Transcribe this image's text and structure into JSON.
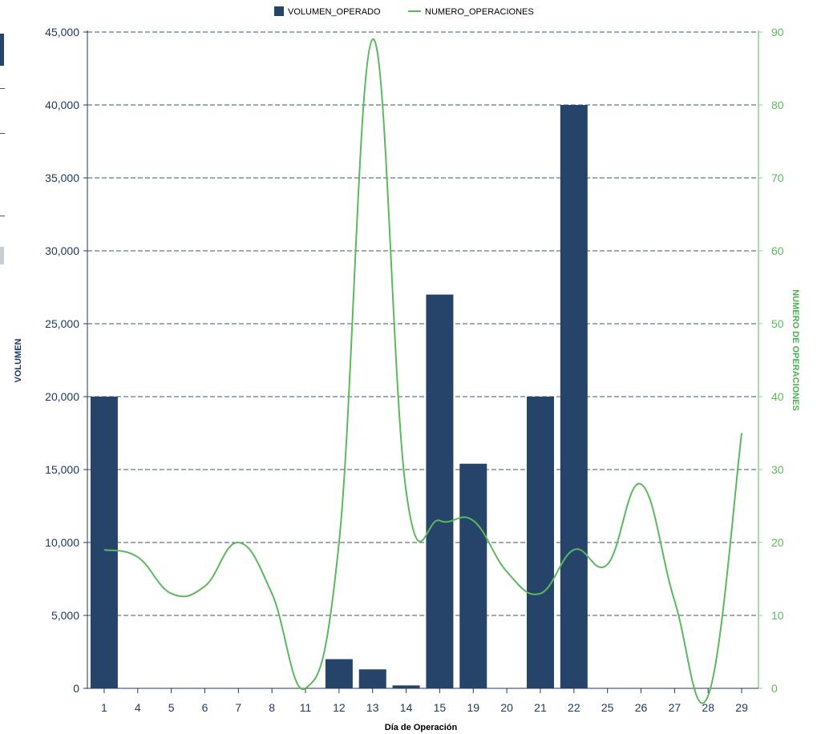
{
  "chart_data": {
    "type": "bar+line",
    "categories": [
      "1",
      "4",
      "5",
      "6",
      "7",
      "8",
      "11",
      "12",
      "13",
      "14",
      "15",
      "19",
      "20",
      "21",
      "22",
      "25",
      "26",
      "27",
      "28",
      "29"
    ],
    "series": [
      {
        "name": "VOLUMEN_OPERADO",
        "type": "bar",
        "axis": "left",
        "color": "#264469",
        "values": [
          20000,
          0,
          0,
          0,
          0,
          0,
          0,
          2000,
          1300,
          200,
          27000,
          15400,
          0,
          20000,
          40000,
          0,
          0,
          0,
          0,
          0
        ]
      },
      {
        "name": "NUMERO_OPERACIONES",
        "type": "line",
        "axis": "right",
        "color": "#5cb85c",
        "values": [
          19,
          18,
          13,
          14,
          20,
          13,
          0,
          20,
          89,
          27,
          23,
          23,
          16,
          13,
          19,
          17,
          28,
          12,
          -1,
          35
        ]
      }
    ],
    "y_left": {
      "label": "VOLUMEN",
      "range": [
        0,
        45000
      ],
      "ticks": [
        "0",
        "5,000",
        "10,000",
        "15,000",
        "20,000",
        "25,000",
        "30,000",
        "35,000",
        "40,000",
        "45,000"
      ]
    },
    "y_right": {
      "label": "NUMERO DE OPERACIONES",
      "range": [
        0,
        90
      ],
      "ticks": [
        "0",
        "10",
        "20",
        "30",
        "40",
        "50",
        "60",
        "70",
        "80",
        "90"
      ]
    },
    "xlabel": "Día de Operación",
    "grid": true,
    "legend_position": "top-center"
  }
}
